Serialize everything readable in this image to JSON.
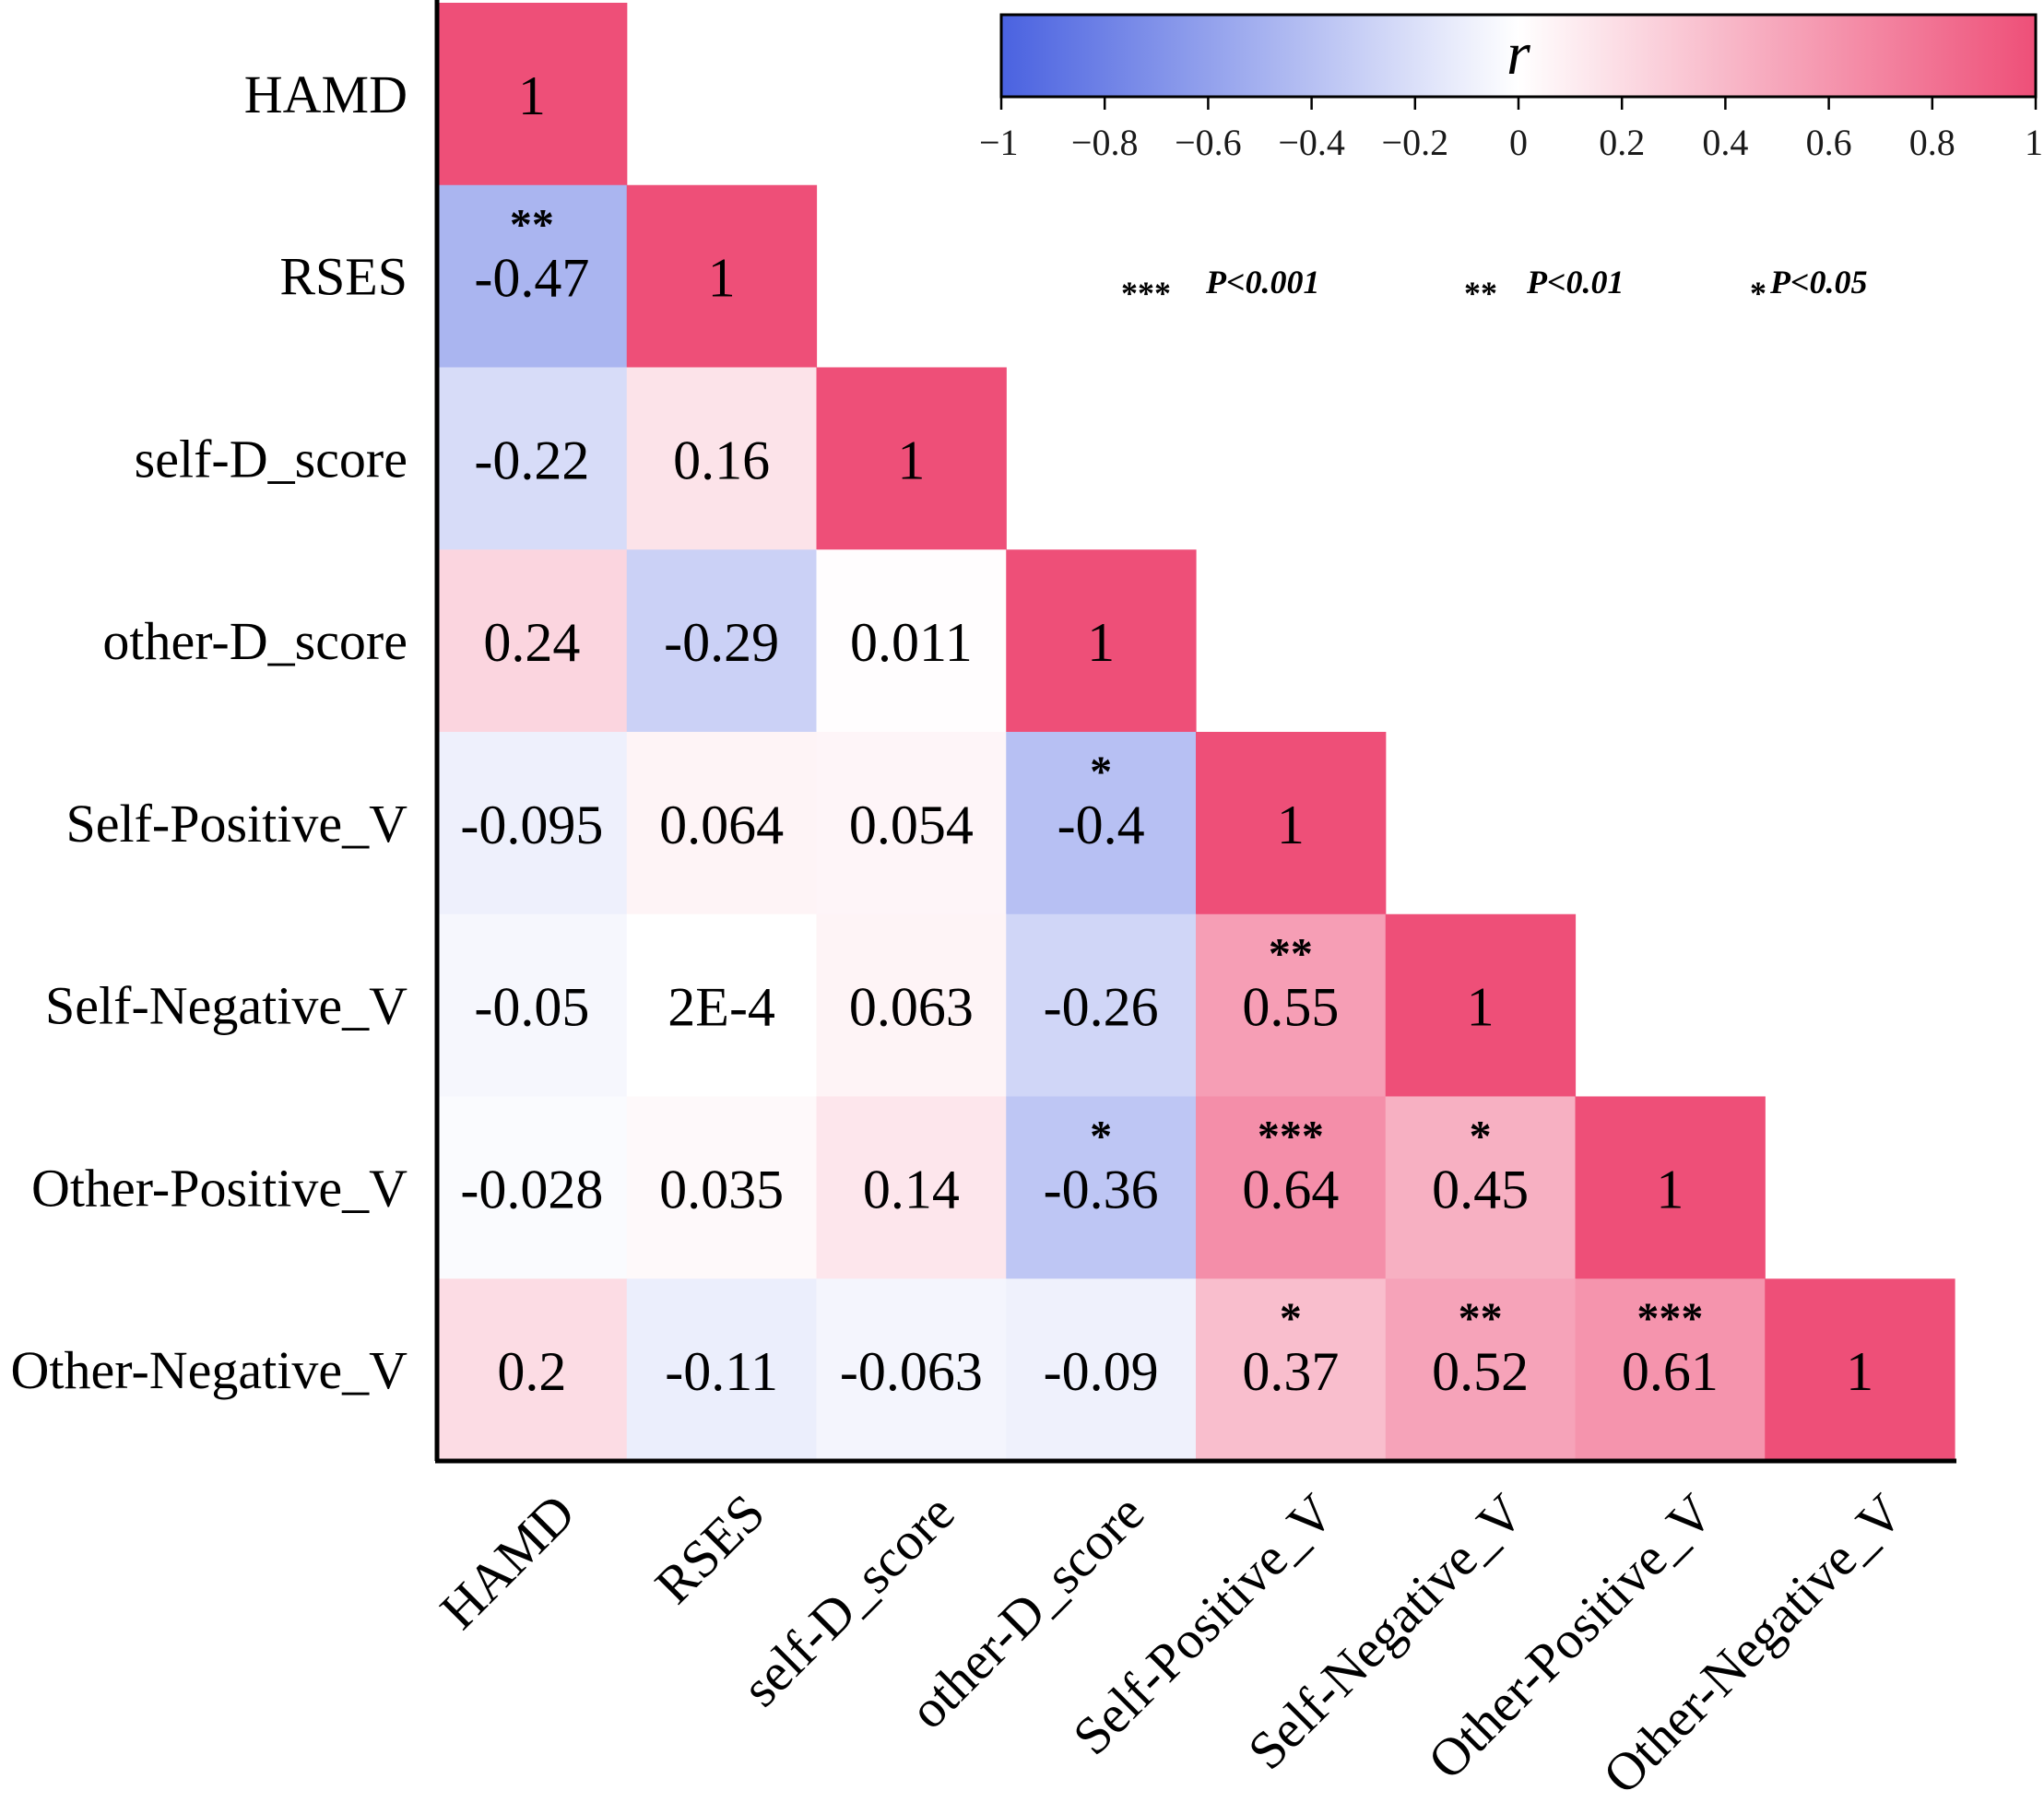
{
  "chart_data": {
    "type": "heatmap",
    "title": "",
    "variables": [
      "HAMD",
      "RSES",
      "self-D_score",
      "other-D_score",
      "Self-Positive_V",
      "Self-Negative_V",
      "Other-Positive_V",
      "Other-Negative_V"
    ],
    "matrix": [
      [
        1
      ],
      [
        -0.47,
        1
      ],
      [
        -0.22,
        0.16,
        1
      ],
      [
        0.24,
        -0.29,
        0.011,
        1
      ],
      [
        -0.095,
        0.064,
        0.054,
        -0.4,
        1
      ],
      [
        -0.05,
        0.0002,
        0.063,
        -0.26,
        0.55,
        1
      ],
      [
        -0.028,
        0.035,
        0.14,
        -0.36,
        0.64,
        0.45,
        1
      ],
      [
        0.2,
        -0.11,
        -0.063,
        -0.09,
        0.37,
        0.52,
        0.61,
        1
      ]
    ],
    "value_labels": [
      [
        "1"
      ],
      [
        "-0.47",
        "1"
      ],
      [
        "-0.22",
        "0.16",
        "1"
      ],
      [
        "0.24",
        "-0.29",
        "0.011",
        "1"
      ],
      [
        "-0.095",
        "0.064",
        "0.054",
        "-0.4",
        "1"
      ],
      [
        "-0.05",
        "2E-4",
        "0.063",
        "-0.26",
        "0.55",
        "1"
      ],
      [
        "-0.028",
        "0.035",
        "0.14",
        "-0.36",
        "0.64",
        "0.45",
        "1"
      ],
      [
        "0.2",
        "-0.11",
        "-0.063",
        "-0.09",
        "0.37",
        "0.52",
        "0.61",
        "1"
      ]
    ],
    "significance": [
      [
        ""
      ],
      [
        "**",
        ""
      ],
      [
        "",
        "",
        ""
      ],
      [
        "",
        "",
        "",
        ""
      ],
      [
        "",
        "",
        "",
        "*",
        ""
      ],
      [
        "",
        "",
        "",
        "",
        "**",
        ""
      ],
      [
        "",
        "",
        "",
        "*",
        "***",
        "*",
        ""
      ],
      [
        "",
        "",
        "",
        "",
        "*",
        "**",
        "***",
        ""
      ]
    ],
    "colorbar": {
      "title": "r",
      "range": [
        -1,
        1
      ],
      "ticks": [
        -1,
        -0.8,
        -0.6,
        -0.4,
        -0.2,
        0,
        0.2,
        0.4,
        0.6,
        0.8,
        1
      ],
      "tick_labels": [
        "−1",
        "−0.8",
        "−0.6",
        "−0.4",
        "−0.2",
        "0",
        "0.2",
        "0.4",
        "0.6",
        "0.8",
        "1"
      ],
      "colors": {
        "low": "#4a62e0",
        "mid": "#ffffff",
        "high": "#ee4f78"
      }
    },
    "significance_legend": [
      {
        "stars": "***",
        "label": "P<0.001"
      },
      {
        "stars": "**",
        "label": "P<0.01"
      },
      {
        "stars": "*",
        "label": "P<0.05"
      }
    ]
  }
}
